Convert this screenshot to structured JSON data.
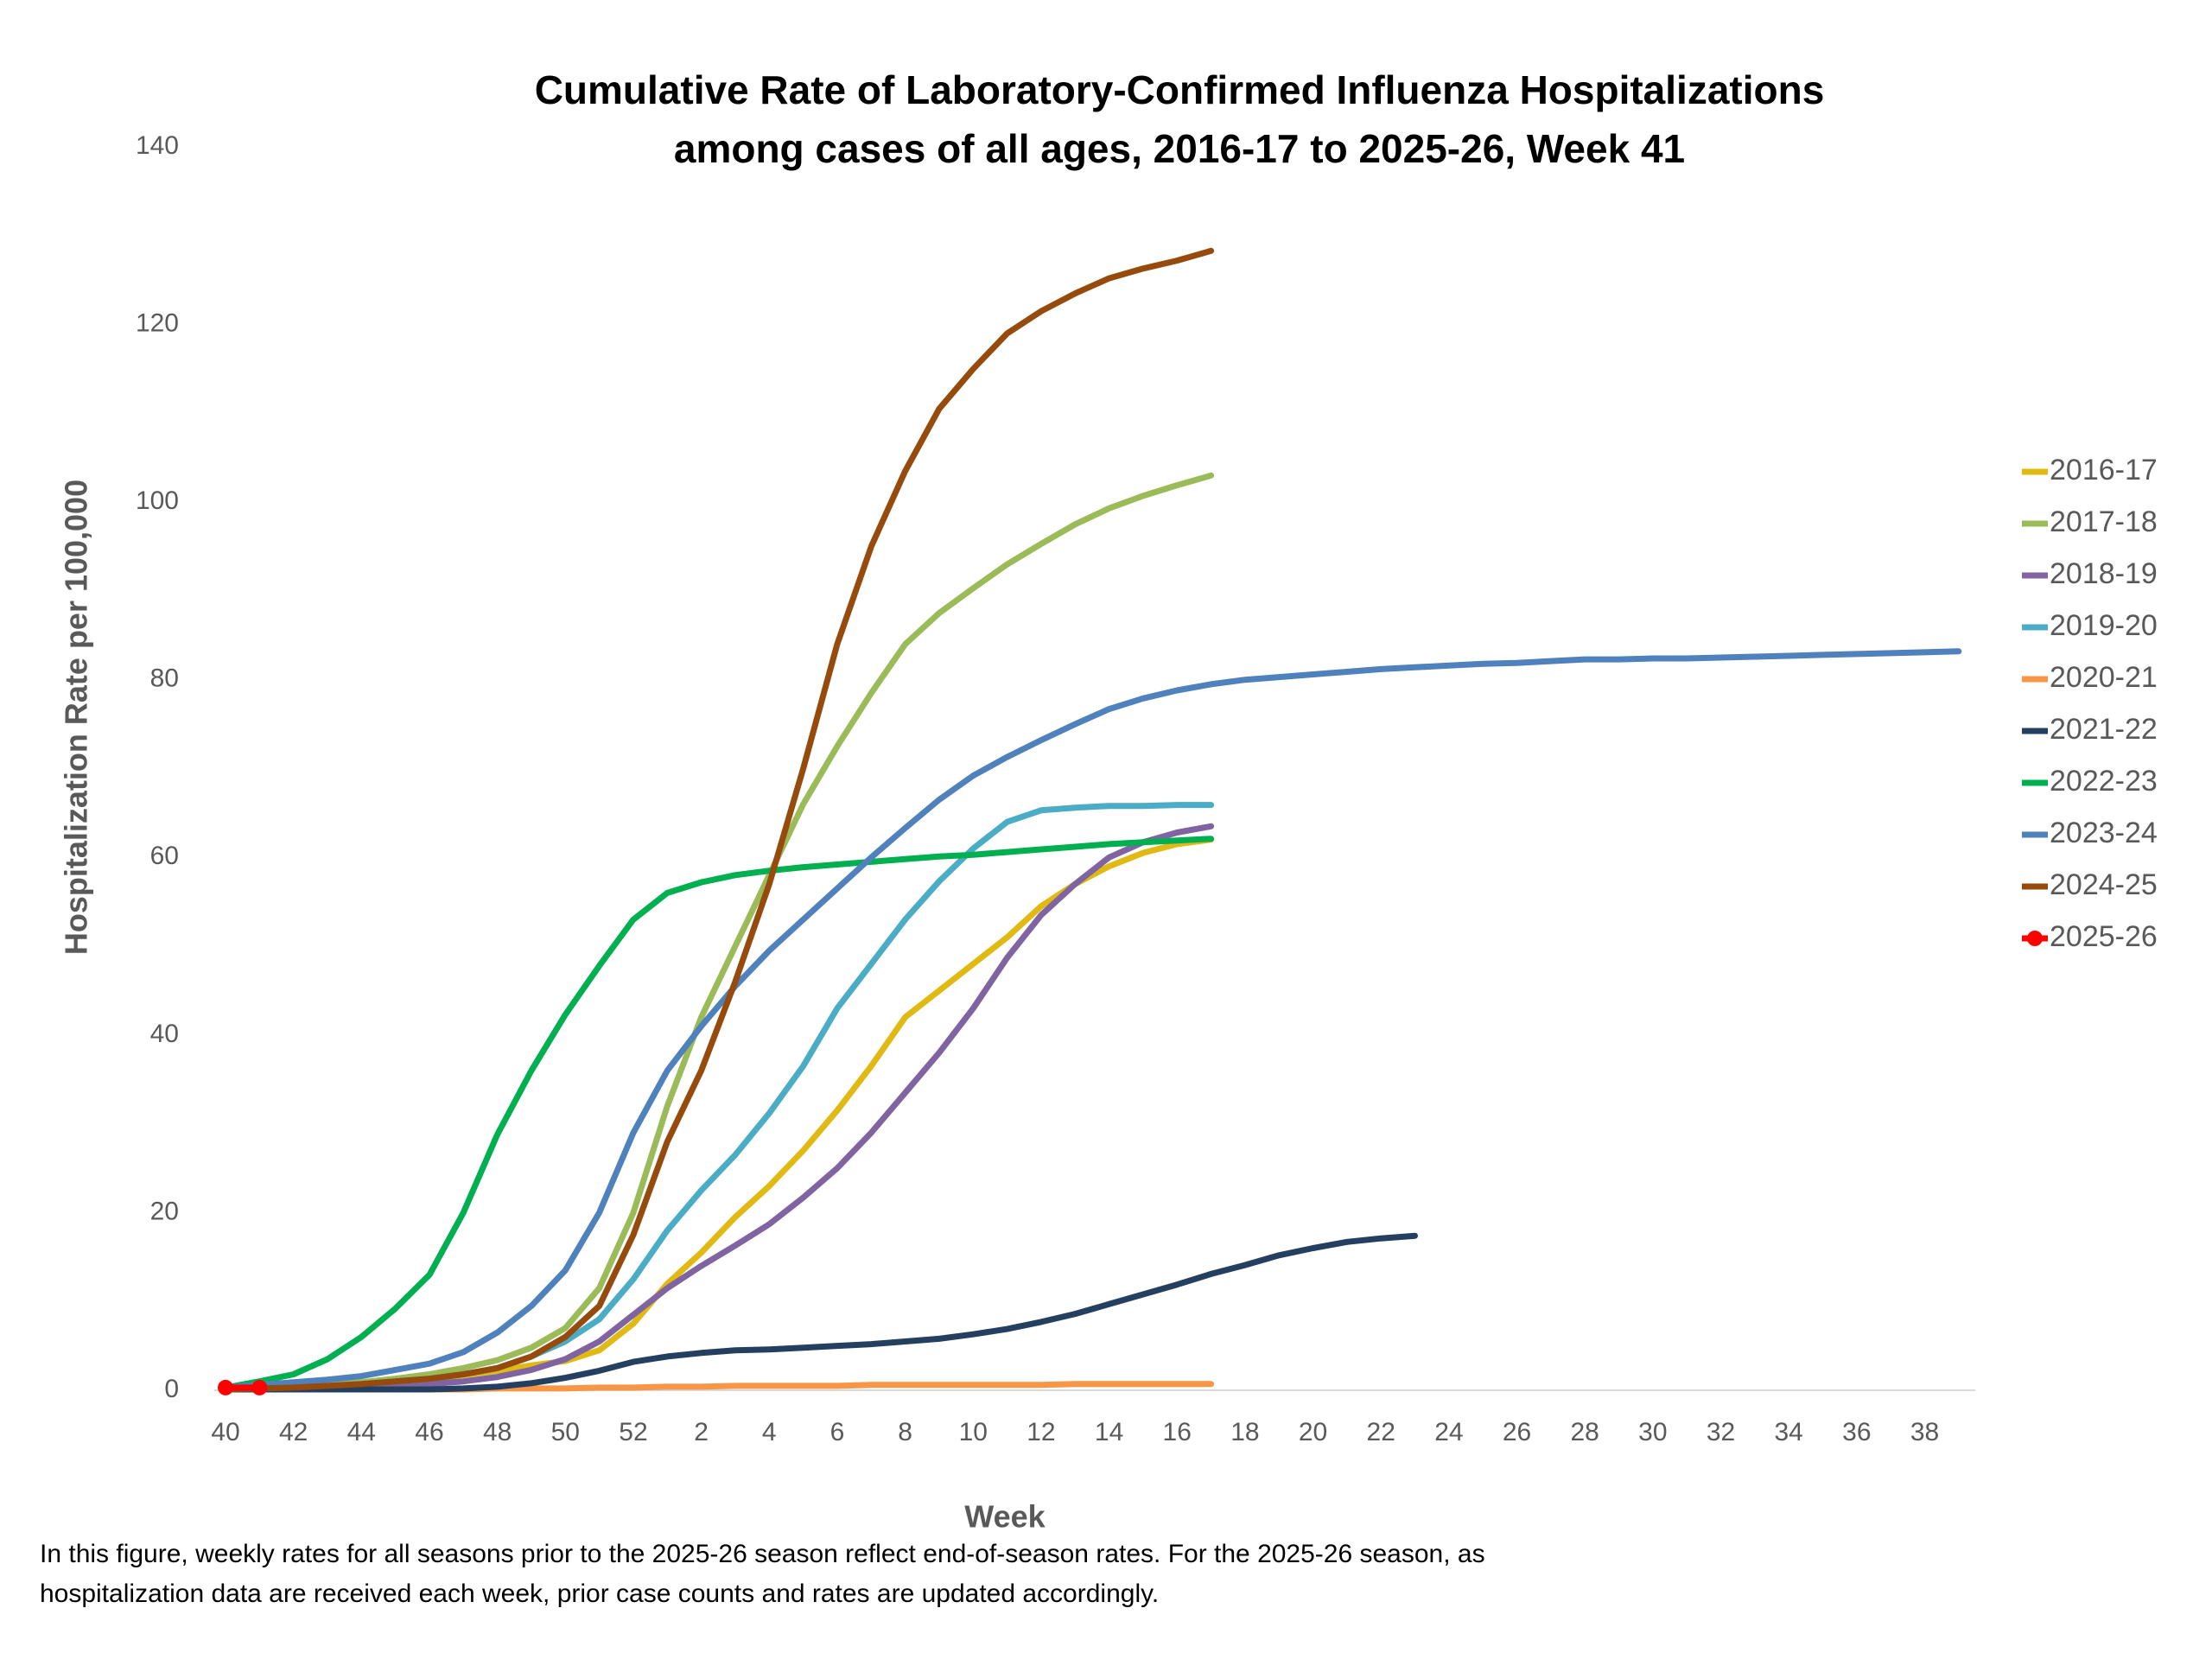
{
  "chart_data": {
    "type": "line",
    "title": [
      "Cumulative Rate of Laboratory-Confirmed Influenza Hospitalizations",
      "among cases of all ages, 2016-17 to 2025-26, Week 41"
    ],
    "x_label": "Week",
    "y_label": "Hospitalization Rate per 100,000",
    "notes": [
      "In this figure, weekly rates for all seasons prior to the 2025-26 season reflect end-of-season rates. For the 2025-26 season, as",
      "hospitalization data are received each week, prior case counts and rates are updated accordingly."
    ],
    "categories": [
      40,
      null,
      42,
      null,
      44,
      null,
      46,
      null,
      48,
      null,
      50,
      null,
      52,
      null,
      2,
      null,
      4,
      null,
      6,
      null,
      8,
      null,
      10,
      null,
      12,
      null,
      14,
      null,
      16,
      null,
      18,
      null,
      20,
      null,
      22,
      null,
      24,
      null,
      26,
      null,
      28,
      null,
      30,
      null,
      32,
      null,
      34,
      null,
      36,
      null,
      38,
      null
    ],
    "ylim": [
      0,
      140
    ],
    "yticks": [
      0,
      20,
      40,
      60,
      80,
      100,
      120,
      140
    ],
    "grid": false,
    "legend": "right",
    "series": [
      {
        "name": "2016-17",
        "color": "#E1B913",
        "values": [
          0.1,
          0.2,
          0.3,
          0.5,
          0.7,
          1,
          1.3,
          1.7,
          2.2,
          2.8,
          3.3,
          4.5,
          7.5,
          12,
          15.5,
          19.5,
          23,
          27,
          31.5,
          36.5,
          42,
          45,
          48,
          51,
          54.5,
          57,
          59,
          60.5,
          61.5,
          62,
          null,
          null,
          null,
          null,
          null,
          null,
          null,
          null,
          null,
          null,
          null,
          null,
          null,
          null,
          null,
          null,
          null,
          null,
          null,
          null,
          null,
          null
        ]
      },
      {
        "name": "2017-18",
        "color": "#9BBB59",
        "values": [
          0.1,
          0.2,
          0.4,
          0.6,
          0.9,
          1.3,
          1.8,
          2.5,
          3.4,
          4.8,
          7,
          11.5,
          20,
          32,
          42,
          50,
          58,
          66,
          72.5,
          78.5,
          84,
          87.5,
          90.3,
          93,
          95.3,
          97.5,
          99.3,
          100.7,
          101.9,
          103,
          null,
          null,
          null,
          null,
          null,
          null,
          null,
          null,
          null,
          null,
          null,
          null,
          null,
          null,
          null,
          null,
          null,
          null,
          null,
          null,
          null,
          null
        ]
      },
      {
        "name": "2018-19",
        "color": "#8064A2",
        "values": [
          0.1,
          0.1,
          0.2,
          0.3,
          0.4,
          0.5,
          0.7,
          1,
          1.5,
          2.3,
          3.5,
          5.5,
          8.5,
          11.5,
          14,
          16.3,
          18.7,
          21.7,
          25,
          29,
          33.5,
          38,
          43,
          48.7,
          53.5,
          57,
          60,
          61.7,
          62.8,
          63.5,
          null,
          null,
          null,
          null,
          null,
          null,
          null,
          null,
          null,
          null,
          null,
          null,
          null,
          null,
          null,
          null,
          null,
          null,
          null,
          null,
          null,
          null
        ]
      },
      {
        "name": "2019-20",
        "color": "#4BACC6",
        "values": [
          0.1,
          0.2,
          0.3,
          0.5,
          0.7,
          1,
          1.3,
          1.8,
          2.5,
          3.8,
          5.5,
          8,
          12.5,
          18,
          22.5,
          26.5,
          31.2,
          36.5,
          43,
          48,
          53,
          57.3,
          61,
          64,
          65.3,
          65.6,
          65.8,
          65.8,
          65.9,
          65.9,
          null,
          null,
          null,
          null,
          null,
          null,
          null,
          null,
          null,
          null,
          null,
          null,
          null,
          null,
          null,
          null,
          null,
          null,
          null,
          null,
          null,
          null
        ]
      },
      {
        "name": "2020-21",
        "color": "#F79646",
        "values": [
          0.1,
          0.1,
          0.1,
          0.1,
          0.1,
          0.1,
          0.1,
          0.1,
          0.2,
          0.2,
          0.2,
          0.3,
          0.3,
          0.4,
          0.4,
          0.5,
          0.5,
          0.5,
          0.5,
          0.6,
          0.6,
          0.6,
          0.6,
          0.6,
          0.6,
          0.7,
          0.7,
          0.7,
          0.7,
          0.7,
          null,
          null,
          null,
          null,
          null,
          null,
          null,
          null,
          null,
          null,
          null,
          null,
          null,
          null,
          null,
          null,
          null,
          null,
          null,
          null,
          null,
          null
        ]
      },
      {
        "name": "2021-22",
        "color": "#243F60",
        "values": [
          0.1,
          0.1,
          0.1,
          0.1,
          0.1,
          0.1,
          0.1,
          0.2,
          0.4,
          0.8,
          1.4,
          2.2,
          3.2,
          3.8,
          4.2,
          4.5,
          4.6,
          4.8,
          5,
          5.2,
          5.5,
          5.8,
          6.3,
          6.9,
          7.7,
          8.6,
          9.7,
          10.8,
          11.9,
          13.1,
          14.1,
          15.2,
          16,
          16.7,
          17.1,
          17.4,
          null,
          null,
          null,
          null,
          null,
          null,
          null,
          null,
          null,
          null,
          null,
          null,
          null,
          null,
          null,
          null
        ]
      },
      {
        "name": "2022-23",
        "color": "#00B050",
        "values": [
          0.3,
          1,
          1.8,
          3.5,
          6,
          9.2,
          13,
          20,
          28.8,
          36,
          42.3,
          47.8,
          53,
          56,
          57.2,
          58,
          58.5,
          58.9,
          59.2,
          59.5,
          59.8,
          60.1,
          60.3,
          60.6,
          60.9,
          61.2,
          61.5,
          61.7,
          61.9,
          62.1,
          null,
          null,
          null,
          null,
          null,
          null,
          null,
          null,
          null,
          null,
          null,
          null,
          null,
          null,
          null,
          null,
          null,
          null,
          null,
          null,
          null,
          null
        ]
      },
      {
        "name": "2023-24",
        "color": "#4F81BD",
        "values": [
          0.3,
          0.6,
          0.9,
          1.2,
          1.6,
          2.3,
          3,
          4.3,
          6.5,
          9.5,
          13.5,
          20,
          29,
          36,
          41,
          45.5,
          49.5,
          53,
          56.5,
          60,
          63.3,
          66.5,
          69.2,
          71.3,
          73.2,
          75,
          76.7,
          77.9,
          78.8,
          79.5,
          80,
          80.3,
          80.6,
          80.9,
          81.2,
          81.4,
          81.6,
          81.8,
          81.9,
          82.1,
          82.3,
          82.3,
          82.4,
          82.4,
          82.5,
          82.6,
          82.7,
          82.8,
          82.9,
          83,
          83.1,
          83.2
        ]
      },
      {
        "name": "2024-25",
        "color": "#964B0C",
        "values": [
          0.1,
          0.2,
          0.3,
          0.5,
          0.7,
          1,
          1.3,
          1.8,
          2.5,
          3.8,
          6,
          9.5,
          17.5,
          28,
          36,
          46,
          57,
          70,
          84,
          95,
          103.5,
          110.5,
          115,
          119,
          121.5,
          123.5,
          125.2,
          126.3,
          127.2,
          128.3,
          null,
          null,
          null,
          null,
          null,
          null,
          null,
          null,
          null,
          null,
          null,
          null,
          null,
          null,
          null,
          null,
          null,
          null,
          null,
          null,
          null,
          null
        ]
      },
      {
        "name": "2025-26",
        "color": "#FF0000",
        "markers": true,
        "values": [
          0.3,
          0.3,
          null,
          null,
          null,
          null,
          null,
          null,
          null,
          null,
          null,
          null,
          null,
          null,
          null,
          null,
          null,
          null,
          null,
          null,
          null,
          null,
          null,
          null,
          null,
          null,
          null,
          null,
          null,
          null,
          null,
          null,
          null,
          null,
          null,
          null,
          null,
          null,
          null,
          null,
          null,
          null,
          null,
          null,
          null,
          null,
          null,
          null,
          null,
          null,
          null,
          null
        ]
      }
    ]
  }
}
